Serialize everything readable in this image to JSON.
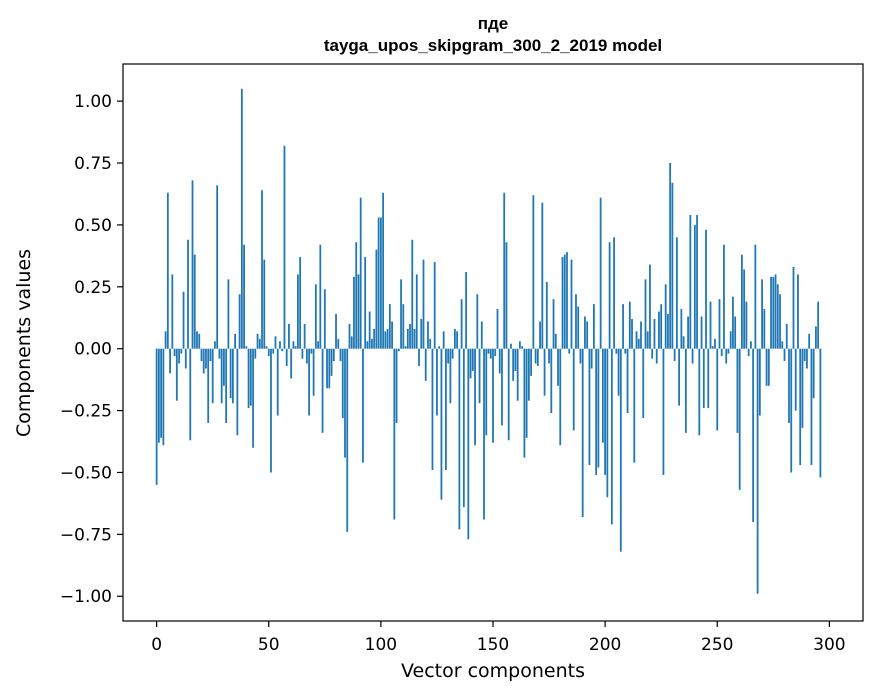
{
  "chart_data": {
    "type": "bar",
    "title": [
      "пде",
      "tayga_upos_skipgram_300_2_2019 model"
    ],
    "xlabel": "Vector components",
    "ylabel": "Components values",
    "xlim": [
      -15,
      315
    ],
    "ylim": [
      -1.1,
      1.15
    ],
    "xticks": [
      0,
      50,
      100,
      150,
      200,
      250,
      300
    ],
    "yticks": [
      1.0,
      0.75,
      0.5,
      0.25,
      0.0,
      -0.25,
      -0.5,
      -0.75,
      -1.0
    ],
    "ytick_labels": [
      "1.00",
      "0.75",
      "0.50",
      "0.25",
      "0.00",
      "−0.25",
      "−0.50",
      "−0.75",
      "−1.00"
    ],
    "grid": false,
    "bar_color": "#1f77b4",
    "values": [
      -0.55,
      -0.38,
      -0.36,
      -0.39,
      0.07,
      0.63,
      -0.1,
      0.3,
      -0.03,
      -0.21,
      -0.06,
      -0.02,
      0.23,
      -0.08,
      0.44,
      -0.37,
      0.68,
      0.38,
      0.07,
      0.06,
      -0.05,
      -0.1,
      -0.08,
      -0.3,
      -0.05,
      -0.22,
      0.03,
      0.66,
      -0.04,
      -0.22,
      -0.15,
      -0.3,
      0.28,
      -0.2,
      -0.22,
      0.06,
      -0.35,
      0.22,
      1.05,
      0.42,
      0.01,
      -0.24,
      -0.23,
      -0.4,
      -0.04,
      0.06,
      0.04,
      0.64,
      0.36,
      0.01,
      -0.03,
      -0.5,
      -0.02,
      0.05,
      -0.27,
      0.03,
      -0.01,
      0.82,
      -0.07,
      0.1,
      -0.12,
      0.03,
      0.01,
      0.3,
      0.37,
      -0.04,
      0.1,
      -0.06,
      -0.27,
      -0.02,
      -0.19,
      0.26,
      0.03,
      0.42,
      -0.34,
      0.24,
      -0.16,
      -0.16,
      -0.11,
      -0.05,
      0.14,
      0.04,
      -0.05,
      -0.28,
      -0.44,
      -0.74,
      0.1,
      0.05,
      0.29,
      0.43,
      0.3,
      0.61,
      -0.46,
      0.37,
      0.03,
      0.15,
      0.04,
      0.08,
      0.4,
      0.53,
      0.53,
      0.63,
      0.07,
      0.08,
      0.18,
      0.11,
      -0.69,
      -0.3,
      -0.01,
      0.28,
      0.18,
      0.01,
      0.08,
      0.1,
      0.44,
      0.08,
      0.3,
      -0.07,
      0.12,
      0.36,
      -0.13,
      0.11,
      0.04,
      -0.49,
      0.35,
      -0.27,
      0.01,
      -0.61,
      0.07,
      -0.49,
      -0.06,
      -0.22,
      -0.04,
      0.08,
      0.07,
      -0.73,
      0.2,
      -0.64,
      0.31,
      -0.77,
      -0.12,
      -0.09,
      -0.39,
      0.22,
      -0.22,
      0.11,
      -0.69,
      -0.35,
      -0.02,
      -0.04,
      -0.38,
      -0.03,
      0.16,
      -0.1,
      -0.31,
      0.63,
      0.43,
      -0.37,
      0.02,
      -0.13,
      -0.09,
      -0.21,
      0.03,
      0.01,
      -0.44,
      -0.36,
      -0.21,
      -0.11,
      0.62,
      -0.06,
      -0.07,
      0.11,
      0.59,
      -0.19,
      0.27,
      -0.06,
      -0.26,
      0.2,
      0.06,
      -0.15,
      -0.39,
      0.37,
      0.38,
      0.39,
      -0.02,
      0.36,
      -0.33,
      0.22,
      0.17,
      -0.06,
      -0.68,
      0.13,
      0.11,
      -0.47,
      -0.08,
      0.18,
      -0.51,
      -0.48,
      0.61,
      -0.38,
      -0.51,
      -0.6,
      0.43,
      -0.71,
      0.45,
      -0.02,
      -0.19,
      -0.82,
      0.18,
      -0.02,
      -0.26,
      0.19,
      0.12,
      -0.46,
      0.07,
      0.04,
      0.11,
      -0.28,
      0.28,
      0.07,
      0.34,
      -0.04,
      0.12,
      -0.06,
      0.15,
      0.18,
      -0.51,
      0.26,
      0.14,
      0.75,
      0.67,
      -0.05,
      0.45,
      -0.23,
      0.16,
      0.05,
      -0.34,
      0.13,
      0.54,
      -0.06,
      0.5,
      0.54,
      -0.35,
      0.13,
      -0.24,
      0.48,
      -0.24,
      0.19,
      0.01,
      0.04,
      -0.33,
      0.2,
      -0.03,
      0.42,
      -0.06,
      -0.02,
      0.07,
      0.21,
      0.13,
      -0.34,
      -0.57,
      0.38,
      0.32,
      0.19,
      -0.03,
      0.03,
      -0.7,
      0.42,
      -0.99,
      -0.27,
      0.28,
      0.16,
      -0.15,
      -0.15,
      0.29,
      0.29,
      0.3,
      0.26,
      0.22,
      0.03,
      -0.05,
      0.1,
      -0.3,
      -0.5,
      0.33,
      -0.25,
      0.3,
      -0.47,
      -0.32,
      -0.05,
      -0.08,
      0.06,
      -0.47,
      -0.2,
      0.09,
      0.19,
      -0.52
    ]
  }
}
